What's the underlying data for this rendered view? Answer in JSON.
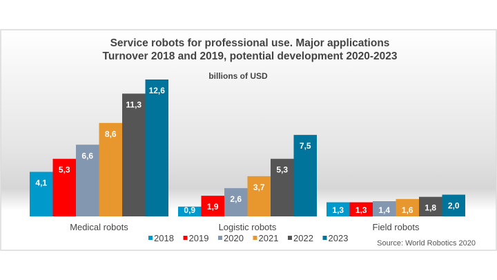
{
  "chart_data": {
    "type": "bar",
    "title": [
      "Service robots for professional use. Major applications",
      "Turnover 2018 and 2019, potential development 2020-2023"
    ],
    "ylabel": "billions of USD",
    "categories": [
      "Medical robots",
      "Logistic robots",
      "Field robots"
    ],
    "series": [
      {
        "name": "2018",
        "color": "#0099cc",
        "values": [
          4.1,
          0.9,
          1.3
        ],
        "labels": [
          "4,1",
          "0,9",
          "1,3"
        ]
      },
      {
        "name": "2019",
        "color": "#ff0000",
        "values": [
          5.3,
          1.9,
          1.3
        ],
        "labels": [
          "5,3",
          "1,9",
          "1,3"
        ]
      },
      {
        "name": "2020",
        "color": "#8497b0",
        "values": [
          6.6,
          2.6,
          1.4
        ],
        "labels": [
          "6,6",
          "2,6",
          "1,4"
        ]
      },
      {
        "name": "2021",
        "color": "#e8962e",
        "values": [
          8.6,
          3.7,
          1.6
        ],
        "labels": [
          "8,6",
          "3,7",
          "1,6"
        ]
      },
      {
        "name": "2022",
        "color": "#555555",
        "values": [
          11.3,
          5.3,
          1.8
        ],
        "labels": [
          "11,3",
          "5,3",
          "1,8"
        ]
      },
      {
        "name": "2023",
        "color": "#00749a",
        "values": [
          12.6,
          7.5,
          2.0
        ],
        "labels": [
          "12,6",
          "7,5",
          "2,0"
        ]
      }
    ],
    "ylim": [
      0,
      12.6
    ],
    "grid": false,
    "legend": "bottom-center",
    "source": "Source: World Robotics 2020"
  }
}
